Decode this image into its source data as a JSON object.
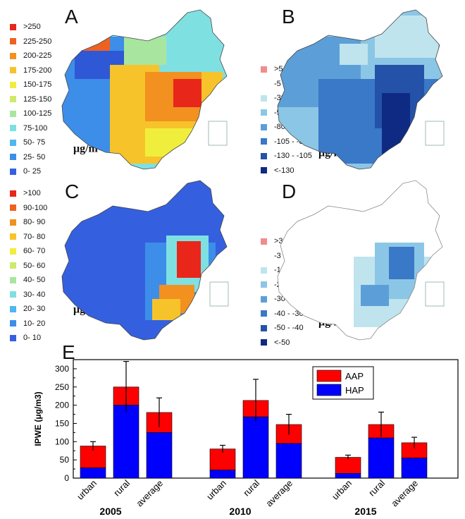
{
  "panels": {
    "A": {
      "letter": "A",
      "unit_base": "μg/m",
      "unit_exp": "3",
      "legend": [
        {
          "label": ">250",
          "color": "#e8261a"
        },
        {
          "label": "225-250",
          "color": "#ee6220"
        },
        {
          "label": "200-225",
          "color": "#f29020"
        },
        {
          "label": "175-200",
          "color": "#f7c32a"
        },
        {
          "label": "150-175",
          "color": "#f0ee3c"
        },
        {
          "label": "125-150",
          "color": "#cdea6a"
        },
        {
          "label": "100-125",
          "color": "#a8e6a0"
        },
        {
          "label": "75-100",
          "color": "#7fe0e2"
        },
        {
          "label": "50- 75",
          "color": "#4fb6f0"
        },
        {
          "label": "25- 50",
          "color": "#3d8ee8"
        },
        {
          "label": "0- 25",
          "color": "#3460e0"
        }
      ]
    },
    "B": {
      "letter": "B",
      "unit_base": "μg/m",
      "unit_exp": "3",
      "legend": [
        {
          "label": ">5",
          "color": "#f28c8c"
        },
        {
          "label": "-5 - 5",
          "color": "#ffffff"
        },
        {
          "label": "-30 - -5",
          "color": "#bfe4ee"
        },
        {
          "label": "-55 - -30",
          "color": "#8cc6e6"
        },
        {
          "label": "-80 - -55",
          "color": "#5c9fd8"
        },
        {
          "label": "-105 - -80",
          "color": "#3a78c8"
        },
        {
          "label": "-130 - -105",
          "color": "#2452a8"
        },
        {
          "label": "<-130",
          "color": "#0e2a82"
        }
      ]
    },
    "C": {
      "letter": "C",
      "unit_base": "μg/m",
      "unit_exp": "3",
      "legend": [
        {
          "label": ">100",
          "color": "#e8261a"
        },
        {
          "label": "90-100",
          "color": "#ee6220"
        },
        {
          "label": "80- 90",
          "color": "#f29020"
        },
        {
          "label": "70- 80",
          "color": "#f7c32a"
        },
        {
          "label": "60- 70",
          "color": "#f0ee3c"
        },
        {
          "label": "50- 60",
          "color": "#cdea6a"
        },
        {
          "label": "40- 50",
          "color": "#a8e6a0"
        },
        {
          "label": "30- 40",
          "color": "#7fe0e2"
        },
        {
          "label": "20- 30",
          "color": "#4fb6f0"
        },
        {
          "label": "10- 20",
          "color": "#3d8ee8"
        },
        {
          "label": "0- 10",
          "color": "#3460e0"
        }
      ]
    },
    "D": {
      "letter": "D",
      "unit_base": "μg/m",
      "unit_exp": "3",
      "legend": [
        {
          "label": ">3",
          "color": "#f28c8c"
        },
        {
          "label": "-3 - 3",
          "color": "#ffffff"
        },
        {
          "label": "-10 - -3",
          "color": "#bfe4ee"
        },
        {
          "label": "-20 - -10",
          "color": "#8cc6e6"
        },
        {
          "label": "-30 - -20",
          "color": "#5c9fd8"
        },
        {
          "label": "-40 - -30",
          "color": "#3a78c8"
        },
        {
          "label": "-50 - -40",
          "color": "#2452a8"
        },
        {
          "label": "<-50",
          "color": "#0e2a82"
        }
      ]
    },
    "E": {
      "letter": "E"
    }
  },
  "chart_data": {
    "type": "bar",
    "stacked": true,
    "ylabel": "IPWE (μg/m3)",
    "ylim": [
      0,
      325
    ],
    "yticks": [
      0,
      50,
      100,
      150,
      200,
      250,
      300
    ],
    "legend_placement": "top-right",
    "groups": [
      {
        "year": "2005",
        "bars": [
          {
            "category": "urban",
            "HAP": 28,
            "total": 88,
            "err": 12
          },
          {
            "category": "rural",
            "HAP": 200,
            "total": 250,
            "err": 70
          },
          {
            "category": "average",
            "HAP": 125,
            "total": 180,
            "err": 40
          }
        ]
      },
      {
        "year": "2010",
        "bars": [
          {
            "category": "urban",
            "HAP": 22,
            "total": 80,
            "err": 10
          },
          {
            "category": "rural",
            "HAP": 168,
            "total": 213,
            "err": 58
          },
          {
            "category": "average",
            "HAP": 95,
            "total": 147,
            "err": 28
          }
        ]
      },
      {
        "year": "2015",
        "bars": [
          {
            "category": "urban",
            "HAP": 13,
            "total": 57,
            "err": 6
          },
          {
            "category": "rural",
            "HAP": 110,
            "total": 147,
            "err": 34
          },
          {
            "category": "average",
            "HAP": 55,
            "total": 97,
            "err": 15
          }
        ]
      }
    ],
    "series": [
      {
        "name": "AAP",
        "color": "#ff0000"
      },
      {
        "name": "HAP",
        "color": "#0000ff"
      }
    ]
  }
}
